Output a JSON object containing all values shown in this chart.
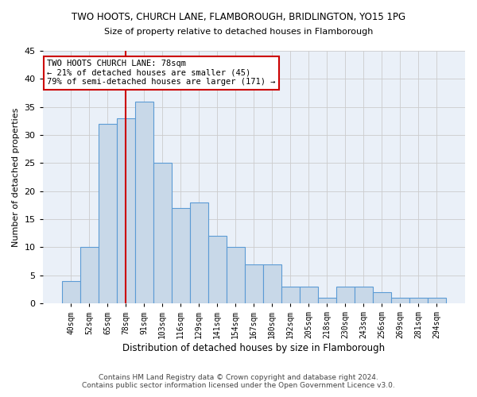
{
  "title1": "TWO HOOTS, CHURCH LANE, FLAMBOROUGH, BRIDLINGTON, YO15 1PG",
  "title2": "Size of property relative to detached houses in Flamborough",
  "xlabel": "Distribution of detached houses by size in Flamborough",
  "ylabel": "Number of detached properties",
  "categories": [
    "40sqm",
    "52sqm",
    "65sqm",
    "78sqm",
    "91sqm",
    "103sqm",
    "116sqm",
    "129sqm",
    "141sqm",
    "154sqm",
    "167sqm",
    "180sqm",
    "192sqm",
    "205sqm",
    "218sqm",
    "230sqm",
    "243sqm",
    "256sqm",
    "269sqm",
    "281sqm",
    "294sqm"
  ],
  "values": [
    4,
    10,
    32,
    33,
    36,
    25,
    17,
    18,
    12,
    10,
    7,
    7,
    3,
    3,
    1,
    3,
    3,
    2,
    1,
    1,
    1
  ],
  "bar_color": "#c8d8e8",
  "bar_edge_color": "#5b9bd5",
  "grid_color": "#cccccc",
  "bg_color": "#eaf0f8",
  "vline_x": 3,
  "vline_color": "#cc0000",
  "annotation_line1": "TWO HOOTS CHURCH LANE: 78sqm",
  "annotation_line2": "← 21% of detached houses are smaller (45)",
  "annotation_line3": "79% of semi-detached houses are larger (171) →",
  "annotation_box_color": "#ffffff",
  "annotation_box_edge": "#cc0000",
  "footer1": "Contains HM Land Registry data © Crown copyright and database right 2024.",
  "footer2": "Contains public sector information licensed under the Open Government Licence v3.0.",
  "ylim": [
    0,
    45
  ],
  "yticks": [
    0,
    5,
    10,
    15,
    20,
    25,
    30,
    35,
    40,
    45
  ]
}
